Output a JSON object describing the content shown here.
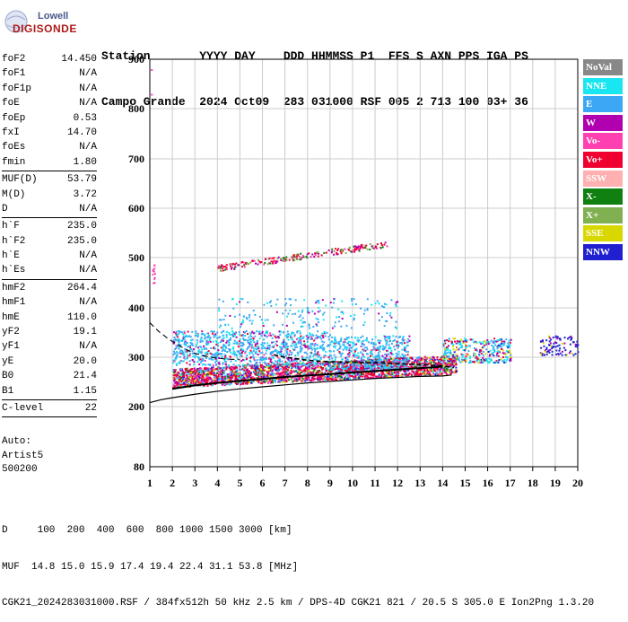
{
  "logo": {
    "line1": "Lowell",
    "line2": "DIGISONDE"
  },
  "header": {
    "row1": "Station       YYYY DAY    DDD HHMMSS P1  FFS S AXN PPS IGA PS",
    "row2": "Campo Grande  2024 Oct09  283 031000 RSF 005 2 713 100 03+ 36"
  },
  "params_groups": [
    [
      {
        "name": "foF2",
        "value": "14.450"
      },
      {
        "name": "foF1",
        "value": "N/A"
      },
      {
        "name": "foF1p",
        "value": "N/A"
      },
      {
        "name": "foE",
        "value": "N/A"
      },
      {
        "name": "foEp",
        "value": "0.53"
      },
      {
        "name": "fxI",
        "value": "14.70"
      },
      {
        "name": "foEs",
        "value": "N/A"
      },
      {
        "name": "fmin",
        "value": "1.80"
      }
    ],
    [
      {
        "name": "MUF(D)",
        "value": "53.79"
      },
      {
        "name": "M(D)",
        "value": "3.72"
      },
      {
        "name": "D",
        "value": "N/A"
      }
    ],
    [
      {
        "name": "h`F",
        "value": "235.0"
      },
      {
        "name": "h`F2",
        "value": "235.0"
      },
      {
        "name": "h`E",
        "value": "N/A"
      },
      {
        "name": "h`Es",
        "value": "N/A"
      }
    ],
    [
      {
        "name": "hmF2",
        "value": "264.4"
      },
      {
        "name": "hmF1",
        "value": "N/A"
      },
      {
        "name": "hmE",
        "value": "110.0"
      },
      {
        "name": "yF2",
        "value": "19.1"
      },
      {
        "name": "yF1",
        "value": "N/A"
      },
      {
        "name": "yE",
        "value": "20.0"
      },
      {
        "name": "B0",
        "value": "21.4"
      },
      {
        "name": "B1",
        "value": "1.15"
      }
    ],
    [
      {
        "name": "C-level",
        "value": "22"
      }
    ]
  ],
  "auto": {
    "line1": "Auto:",
    "line2": "Artist5",
    "line3": "500200"
  },
  "legend": [
    {
      "label": "NoVal",
      "color": "#888888"
    },
    {
      "label": "NNE",
      "color": "#19e6f0"
    },
    {
      "label": "E",
      "color": "#3ca8f5"
    },
    {
      "label": "W",
      "color": "#b000b0"
    },
    {
      "label": "Vo-",
      "color": "#ff40b0"
    },
    {
      "label": "Vo+",
      "color": "#f00030"
    },
    {
      "label": "SSW",
      "color": "#ffb0b0"
    },
    {
      "label": "X-",
      "color": "#108010"
    },
    {
      "label": "X+",
      "color": "#80b050"
    },
    {
      "label": "SSE",
      "color": "#d8d800"
    },
    {
      "label": "NNW",
      "color": "#2020d0"
    }
  ],
  "bottom": {
    "row1": "D     100  200  400  600  800 1000 1500 3000 [km]",
    "row2": "MUF  14.8 15.0 15.9 17.4 19.4 22.4 31.1 53.8 [MHz]",
    "row3": "CGK21_2024283031000.RSF / 384fx512h 50 kHz 2.5 km / DPS-4D CGK21 821 / 20.5 S 305.0 E Ion2Png 1.3.20"
  },
  "chart_data": {
    "type": "scatter",
    "title": "",
    "xlabel": "",
    "ylabel": "",
    "x_ticks": [
      1,
      2,
      3,
      4,
      5,
      6,
      7,
      8,
      9,
      10,
      11,
      12,
      13,
      14,
      15,
      16,
      17,
      18,
      19,
      20
    ],
    "y_ticks": [
      80,
      200,
      300,
      400,
      500,
      600,
      700,
      800,
      900
    ],
    "xlim": [
      1,
      20
    ],
    "grid": true,
    "legend_position": "right",
    "profile_solid": {
      "x": [
        1.0,
        1.5,
        2.0,
        3.0,
        4.0,
        5.0,
        6.0,
        7.0,
        8.0,
        9.0,
        10.0,
        11.0,
        12.0,
        13.0,
        14.0,
        14.4
      ],
      "y": [
        208,
        214,
        218,
        225,
        231,
        236,
        240,
        244,
        248,
        251,
        254,
        257,
        259,
        261,
        262,
        264
      ]
    },
    "profile_dashed": {
      "x": [
        1.0,
        1.4,
        1.8,
        2.2,
        2.6,
        3.0,
        3.5,
        4.0,
        4.5,
        5.0
      ],
      "y": [
        370,
        352,
        338,
        326,
        316,
        308,
        302,
        298,
        296,
        295
      ]
    },
    "trace_lower_solid": {
      "x": [
        2.0,
        3.0,
        4.0,
        5.0,
        6.0,
        7.0,
        8.0,
        9.0,
        10.0,
        11.0,
        12.0,
        13.0,
        14.0
      ],
      "y": [
        236,
        243,
        248,
        252,
        256,
        260,
        263,
        266,
        269,
        272,
        275,
        278,
        281
      ]
    },
    "trace_upper_dashed": {
      "x": [
        6.5,
        7.0,
        7.5,
        8.0,
        8.5,
        9.0,
        9.5,
        10.0,
        10.5,
        11.0,
        11.5,
        12.0,
        12.5,
        13.0,
        13.5,
        14.0,
        14.5
      ],
      "y": [
        305,
        300,
        297,
        294,
        292,
        291,
        290,
        290,
        289,
        289,
        288,
        287,
        286,
        285,
        284,
        282,
        279
      ]
    }
  }
}
